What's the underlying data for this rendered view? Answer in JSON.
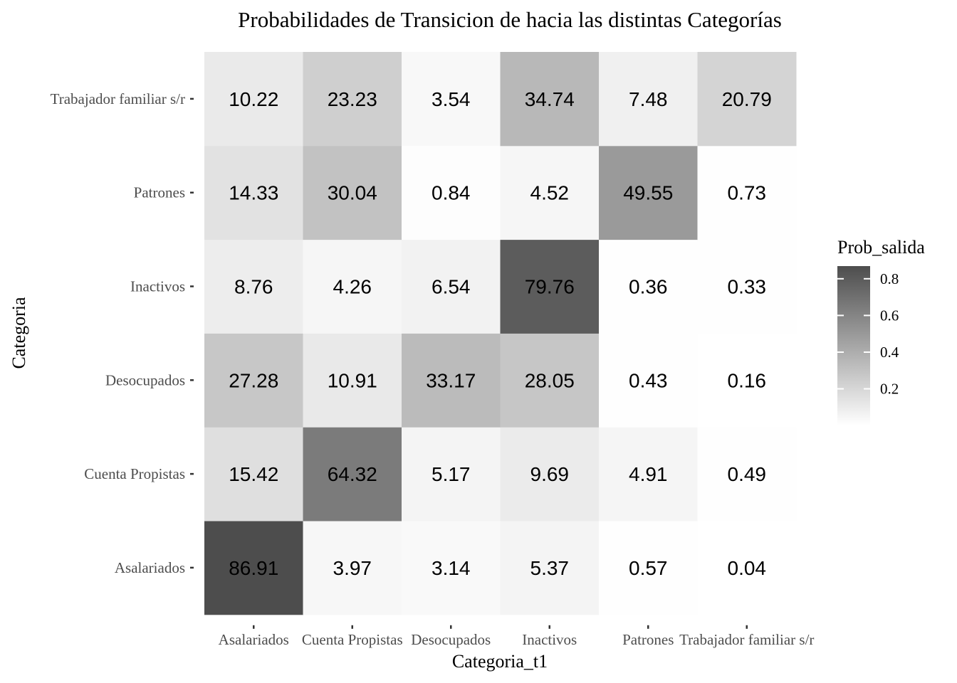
{
  "chart_data": {
    "type": "heatmap",
    "title": "Probabilidades de Transicion de hacia las distintas Categorías",
    "xlabel": "Categoria_t1",
    "ylabel": "Categoria",
    "x_categories": [
      "Asalariados",
      "Cuenta Propistas",
      "Desocupados",
      "Inactivos",
      "Patrones",
      "Trabajador familiar s/r"
    ],
    "y_categories": [
      "Asalariados",
      "Cuenta Propistas",
      "Desocupados",
      "Inactivos",
      "Patrones",
      "Trabajador familiar s/r"
    ],
    "rows": [
      {
        "category": "Asalariados",
        "values": [
          86.91,
          3.97,
          3.14,
          5.37,
          0.57,
          0.04
        ],
        "labels": [
          "86.91",
          "3.97",
          "3.14",
          "5.37",
          "0.57",
          "0.04"
        ]
      },
      {
        "category": "Cuenta Propistas",
        "values": [
          15.42,
          64.32,
          5.17,
          9.69,
          4.91,
          0.49
        ],
        "labels": [
          "15.42",
          "64.32",
          "5.17",
          "9.69",
          "4.91",
          "0.49"
        ]
      },
      {
        "category": "Desocupados",
        "values": [
          27.28,
          10.91,
          33.17,
          28.05,
          0.43,
          0.16
        ],
        "labels": [
          "27.28",
          "10.91",
          "33.17",
          "28.05",
          "0.43",
          "0.16"
        ]
      },
      {
        "category": "Inactivos",
        "values": [
          8.76,
          4.26,
          6.54,
          79.76,
          0.36,
          0.33
        ],
        "labels": [
          "8.76",
          "4.26",
          "6.54",
          "79.76",
          "0.36",
          "0.33"
        ]
      },
      {
        "category": "Patrones",
        "values": [
          14.33,
          30.04,
          0.84,
          4.52,
          49.55,
          0.73
        ],
        "labels": [
          "14.33",
          "30.04",
          "0.84",
          "4.52",
          "49.55",
          "0.73"
        ]
      },
      {
        "category": "Trabajador familiar s/r",
        "values": [
          10.22,
          23.23,
          3.54,
          34.74,
          7.48,
          20.79
        ],
        "labels": [
          "10.22",
          "23.23",
          "3.54",
          "34.74",
          "7.48",
          "20.79"
        ]
      }
    ],
    "legend": {
      "title": "Prob_salida",
      "ticks": [
        0.2,
        0.4,
        0.6,
        0.8
      ],
      "tick_labels": [
        "0.2",
        "0.4",
        "0.6",
        "0.8"
      ],
      "range": [
        0.0004,
        0.8691
      ],
      "color_low": "#ffffff",
      "color_high": "#4d4d4d",
      "placement": "right"
    },
    "background": "#ffffff",
    "grid": false
  }
}
